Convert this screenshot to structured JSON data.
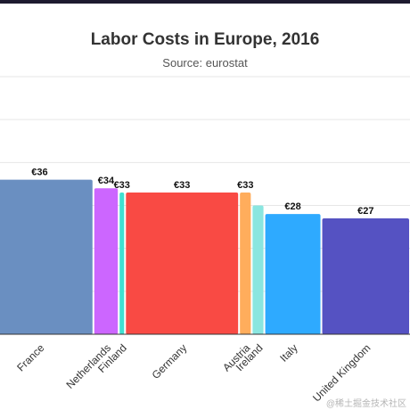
{
  "chart_data": {
    "type": "bar",
    "title": "Labor Costs in Europe, 2016",
    "subtitle": "Source: eurostat",
    "categories": [
      "France",
      "Netherlands",
      "Finland",
      "Germany",
      "Austria",
      "Ireland",
      "Italy",
      "United Kingdom"
    ],
    "values": [
      36,
      34,
      33,
      33,
      33,
      30,
      28,
      27
    ],
    "value_labels": [
      "€36",
      "€34",
      "€33",
      "€33",
      "€33",
      "",
      "€28",
      "€27"
    ],
    "widths": [
      17,
      4,
      1,
      18,
      2,
      2,
      9,
      14
    ],
    "colors": [
      "#6a8fc1",
      "#cc66ff",
      "#40e0d0",
      "#f94a44",
      "#ffad5c",
      "#8ae6e0",
      "#2eaaff",
      "#5552c2"
    ],
    "ylim": [
      0,
      60
    ],
    "grid": true,
    "legend": "none"
  },
  "watermark": "@稀土掘金技术社区"
}
